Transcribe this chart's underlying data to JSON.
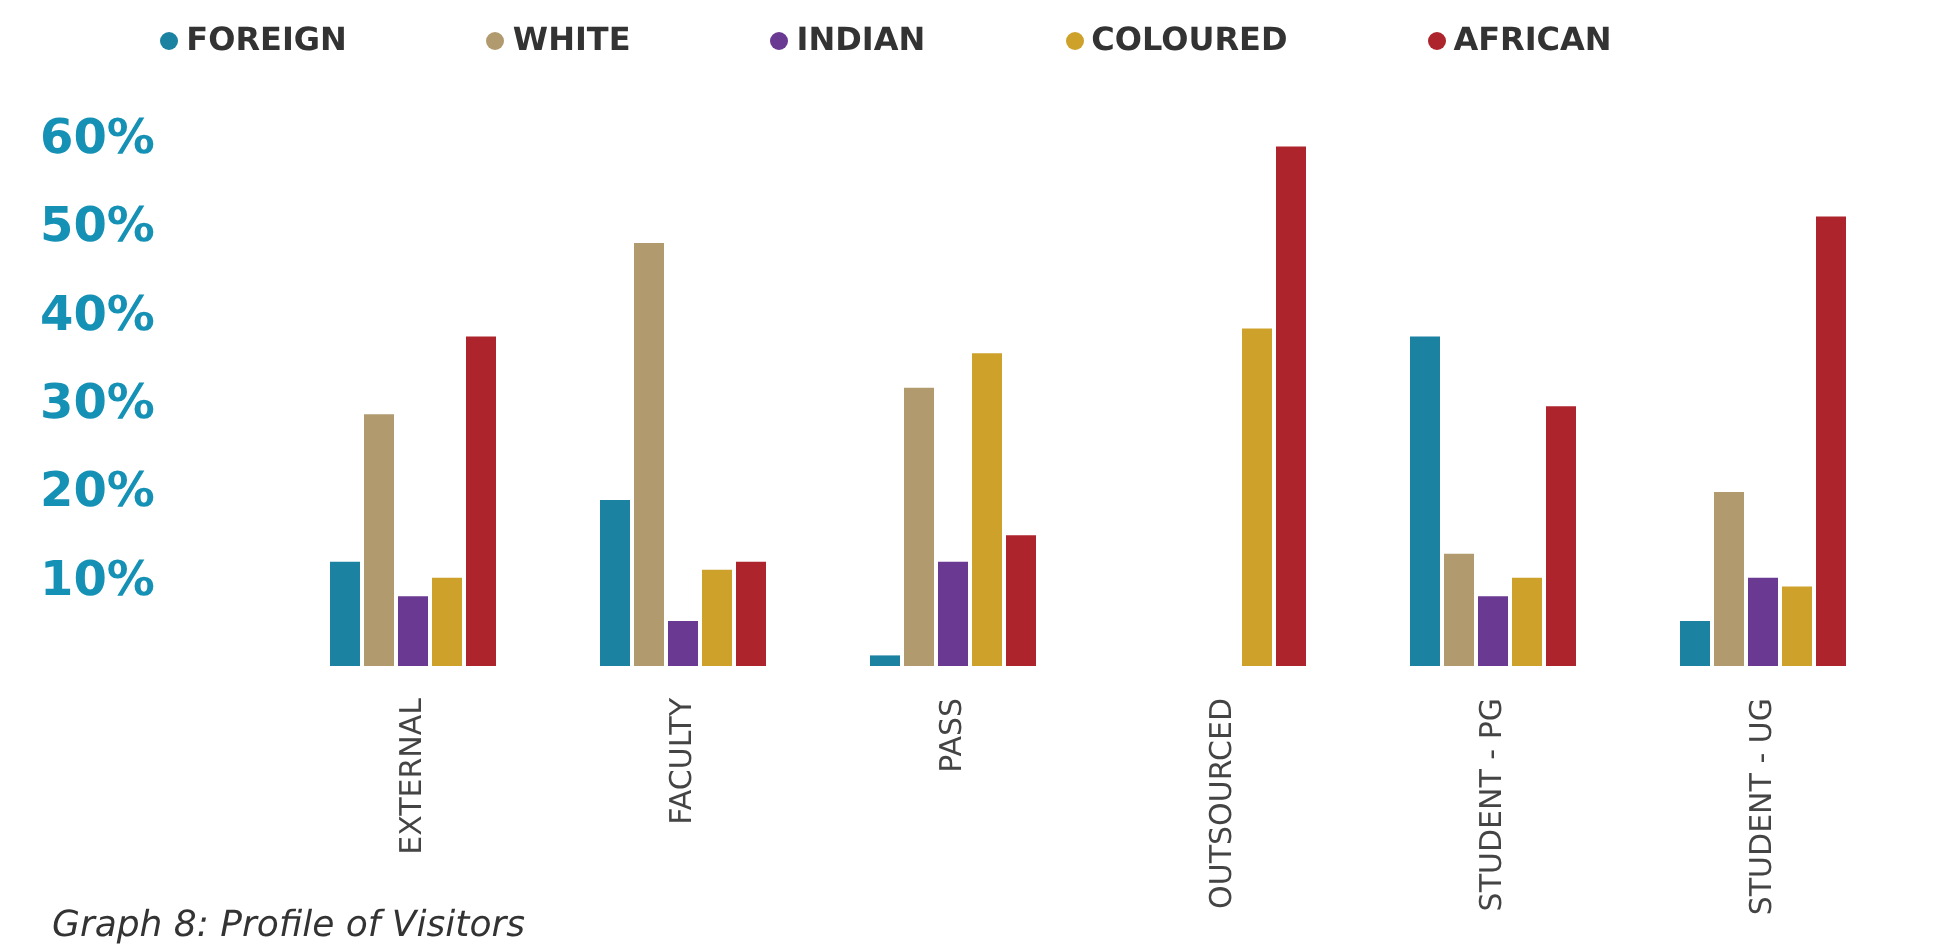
{
  "chart_data": {
    "type": "bar",
    "categories": [
      "EXTERNAL",
      "FACULTY",
      "PASS",
      "OUTSOURCED",
      "STUDENT - PG",
      "STUDENT - UG"
    ],
    "series": [
      {
        "name": "FOREIGN",
        "color": "#1b82a1",
        "values": [
          11.8,
          18.8,
          1.2,
          0,
          37.3,
          5.1
        ]
      },
      {
        "name": "WHITE",
        "color": "#b19a6e",
        "values": [
          28.5,
          47.9,
          31.5,
          0,
          12.7,
          19.7
        ]
      },
      {
        "name": "INDIAN",
        "color": "#6a3a93",
        "values": [
          7.9,
          5.1,
          11.8,
          0,
          7.9,
          10.0
        ]
      },
      {
        "name": "COLOURED",
        "color": "#cea12a",
        "values": [
          10.0,
          10.9,
          35.4,
          38.2,
          10.0,
          9.0
        ]
      },
      {
        "name": "AFRICAN",
        "color": "#ad242c",
        "values": [
          37.3,
          11.8,
          14.8,
          58.8,
          29.4,
          50.9
        ]
      }
    ],
    "ylim": [
      0,
      60
    ],
    "yticks": [
      {
        "value": 10,
        "label": "10%"
      },
      {
        "value": 20,
        "label": "20%"
      },
      {
        "value": 30,
        "label": "30%"
      },
      {
        "value": 40,
        "label": "40%"
      },
      {
        "value": 50,
        "label": "50%"
      },
      {
        "value": 60,
        "label": "60%"
      }
    ],
    "legend": "top",
    "grid": false,
    "annotations": [
      "Graph 8: Profile of Visitors"
    ]
  }
}
